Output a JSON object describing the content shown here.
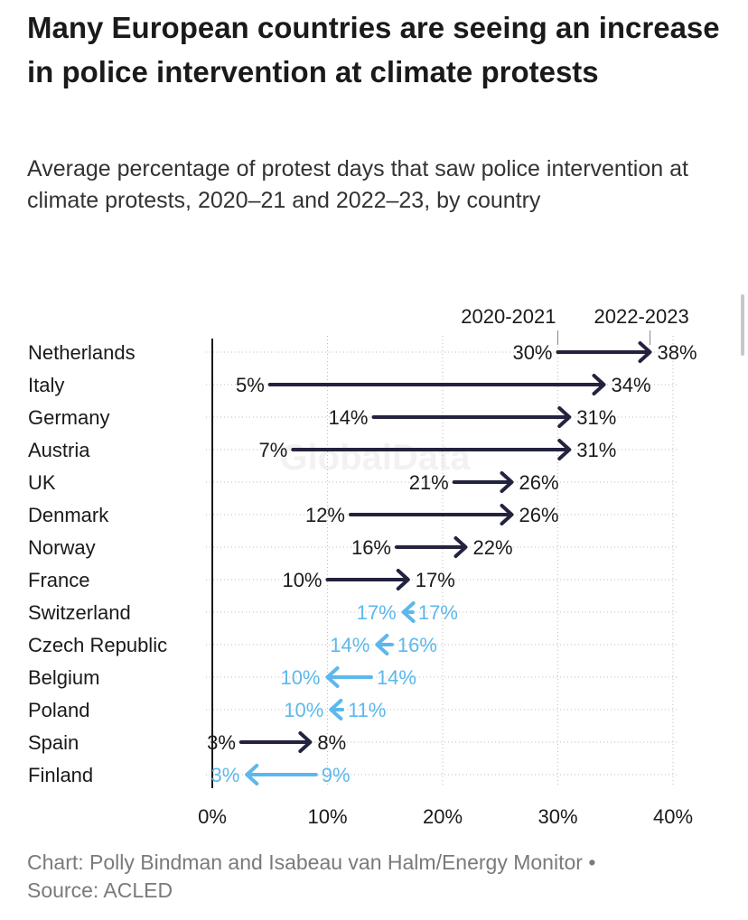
{
  "title": "Many European countries are seeing an increase in police intervention at climate protests",
  "subtitle": "Average percentage of protest days that saw police intervention at climate protests, 2020–21 and 2022–23, by country",
  "watermark": "GlobalData",
  "footer": {
    "credit": "Chart: Polly Bindman and Isabeau van Halm/Energy Monitor •",
    "source": "Source: ACLED"
  },
  "colors": {
    "increase": "#23233f",
    "decrease": "#5cb8ec",
    "axis": "#1a1a1a",
    "grid": "#bdbdbd",
    "label": "#1a1a1a"
  },
  "chart_data": {
    "type": "arrow",
    "xlim": [
      0,
      40
    ],
    "x_ticks": [
      0,
      10,
      20,
      30,
      40
    ],
    "x_tick_labels": [
      "0%",
      "10%",
      "20%",
      "30%",
      "40%"
    ],
    "legend": {
      "start_label": "2020-2021",
      "end_label": "2022-2023",
      "anchor_row": "Netherlands"
    },
    "series": [
      {
        "country": "Netherlands",
        "start": 30,
        "end": 38,
        "start_label": "30%",
        "end_label": "38%"
      },
      {
        "country": "Italy",
        "start": 5,
        "end": 34,
        "start_label": "5%",
        "end_label": "34%"
      },
      {
        "country": "Germany",
        "start": 14,
        "end": 31,
        "start_label": "14%",
        "end_label": "31%"
      },
      {
        "country": "Austria",
        "start": 7,
        "end": 31,
        "start_label": "7%",
        "end_label": "31%"
      },
      {
        "country": "UK",
        "start": 21,
        "end": 26,
        "start_label": "21%",
        "end_label": "26%"
      },
      {
        "country": "Denmark",
        "start": 12,
        "end": 26,
        "start_label": "12%",
        "end_label": "26%"
      },
      {
        "country": "Norway",
        "start": 16,
        "end": 22,
        "start_label": "16%",
        "end_label": "22%"
      },
      {
        "country": "France",
        "start": 10,
        "end": 17,
        "start_label": "10%",
        "end_label": "17%"
      },
      {
        "country": "Switzerland",
        "start": 17.4,
        "end": 16.6,
        "start_label": "17%",
        "end_label": "17%"
      },
      {
        "country": "Czech Republic",
        "start": 15.6,
        "end": 14.3,
        "start_label": "16%",
        "end_label": "14%"
      },
      {
        "country": "Belgium",
        "start": 13.8,
        "end": 10,
        "start_label": "14%",
        "end_label": "10%"
      },
      {
        "country": "Poland",
        "start": 11.3,
        "end": 10.3,
        "start_label": "11%",
        "end_label": "10%"
      },
      {
        "country": "Spain",
        "start": 2.5,
        "end": 8.5,
        "start_label": "3%",
        "end_label": "8%"
      },
      {
        "country": "Finland",
        "start": 9,
        "end": 3,
        "start_label": "9%",
        "end_label": "3%"
      }
    ]
  }
}
